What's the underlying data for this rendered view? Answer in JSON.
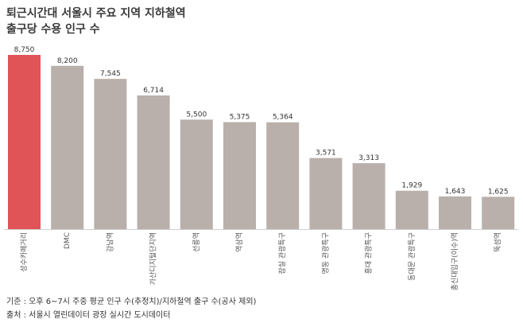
{
  "title_line1": "퇴근시간대 서울시 주요 지역 지하철역",
  "title_line2": "출구당 수용 인구 수",
  "footer": {
    "basis": "기준 : 오후 6~7시 주중 평균 인구 수(추정치)/지하철역 출구 수(공사 제외)",
    "source": "출처 : 서울시 열린데이터 광장 실시간 도시데이터"
  },
  "colors": {
    "highlight": "#e05458",
    "bar": "#b9b0ab",
    "axis": "#cfcfcf"
  },
  "chart_data": {
    "type": "bar",
    "title": "퇴근시간대 서울시 주요 지역 지하철역 출구당 수용 인구 수",
    "categories": [
      "성수카페거리",
      "DMC",
      "강남역",
      "가산디지털단지역",
      "선릉역",
      "역삼역",
      "잠실 관광특구",
      "명동 관광특구",
      "홍대 관광특구",
      "동대문 관광특구",
      "총신대입구(이수)역",
      "뚝섬역"
    ],
    "values": [
      8750,
      8200,
      7545,
      6714,
      5500,
      5375,
      5364,
      3571,
      3313,
      1929,
      1643,
      1625
    ],
    "value_labels": [
      "8,750",
      "8,200",
      "7,545",
      "6,714",
      "5,500",
      "5,375",
      "5,364",
      "3,571",
      "3,313",
      "1,929",
      "1,643",
      "1,625"
    ],
    "highlight_index": 0,
    "ylim": [
      0,
      8750
    ],
    "grid": false,
    "xlabel": "",
    "ylabel": ""
  }
}
